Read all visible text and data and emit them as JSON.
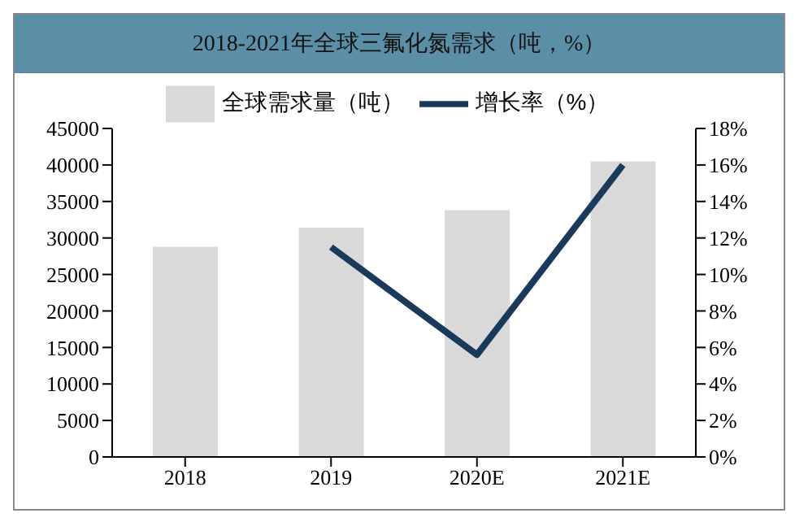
{
  "chart_data": {
    "type": "bar",
    "title": "2018-2021年全球三氟化氮需求（吨，%）",
    "categories": [
      "2018",
      "2019",
      "2020E",
      "2021E"
    ],
    "series": [
      {
        "name": "全球需求量（吨）",
        "color": "#d9d9d9",
        "values": [
          28800,
          31400,
          33800,
          40500
        ]
      },
      {
        "name": "增长率（%）",
        "type": "line",
        "axis": "y2",
        "color": "#1a3a5c",
        "values": [
          null,
          11.5,
          5.6,
          16
        ]
      }
    ],
    "ylim": [
      0,
      45000
    ],
    "yticks": [
      0,
      5000,
      10000,
      15000,
      20000,
      25000,
      30000,
      35000,
      40000,
      45000
    ],
    "y2lim": [
      0,
      18
    ],
    "y2ticks": [
      {
        "value": 0,
        "label": "0%"
      },
      {
        "value": 2,
        "label": "2%"
      },
      {
        "value": 4,
        "label": "4%"
      },
      {
        "value": 6,
        "label": "6%"
      },
      {
        "value": 8,
        "label": "8%"
      },
      {
        "value": 10,
        "label": "10%"
      },
      {
        "value": 12,
        "label": "12%"
      },
      {
        "value": 14,
        "label": "14%"
      },
      {
        "value": 16,
        "label": "16%"
      },
      {
        "value": 18,
        "label": "18%"
      }
    ],
    "grid": false,
    "legend": "top",
    "marker": "none"
  }
}
